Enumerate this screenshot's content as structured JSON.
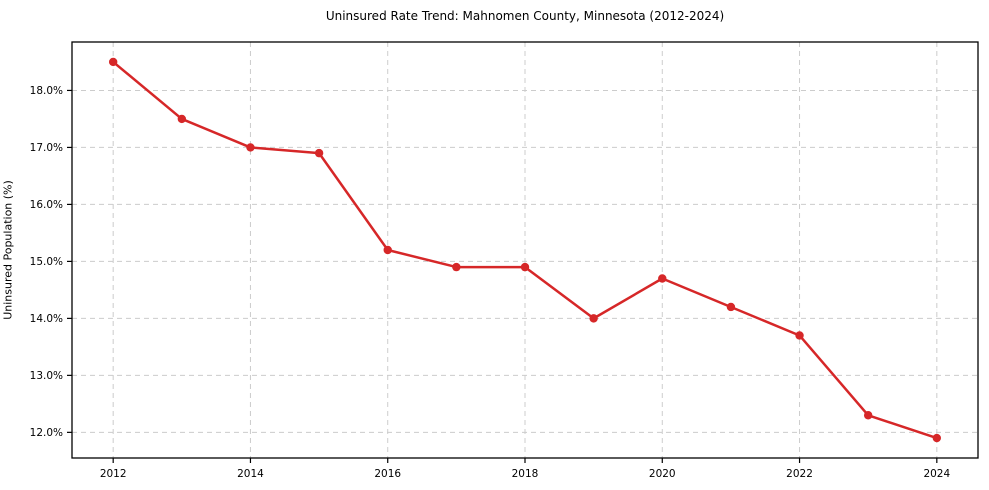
{
  "figure": {
    "background_color": "#ffffff"
  },
  "chart_data": {
    "type": "line",
    "title": "Uninsured Rate Trend: Mahnomen County, Minnesota (2012-2024)",
    "xlabel": "",
    "ylabel": "Uninsured Population (%)",
    "x": [
      2012,
      2013,
      2014,
      2015,
      2016,
      2017,
      2018,
      2019,
      2020,
      2021,
      2022,
      2023,
      2024
    ],
    "values": [
      18.5,
      17.5,
      17.0,
      16.9,
      15.2,
      14.9,
      14.9,
      14.0,
      14.7,
      14.2,
      13.7,
      12.3,
      11.9
    ],
    "xlim": [
      2011.4,
      2024.6
    ],
    "ylim": [
      11.55,
      18.85
    ],
    "xticks": [
      2012,
      2014,
      2016,
      2018,
      2020,
      2022,
      2024
    ],
    "xtick_labels": [
      "2012",
      "2014",
      "2016",
      "2018",
      "2020",
      "2022",
      "2024"
    ],
    "yticks": [
      12,
      13,
      14,
      15,
      16,
      17,
      18
    ],
    "ytick_labels": [
      "12.0%",
      "13.0%",
      "14.0%",
      "15.0%",
      "16.0%",
      "17.0%",
      "18.0%"
    ],
    "grid": true,
    "grid_style": "dashed",
    "legend_position": "none",
    "line_color": "#d62728",
    "marker": "circle",
    "grid_color": "#cccccc",
    "spine_color": "#000000",
    "tick_color": "#000000",
    "text_color": "#000000"
  }
}
